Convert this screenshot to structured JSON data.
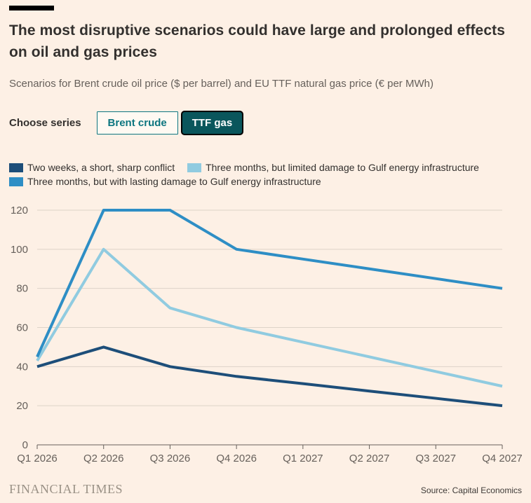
{
  "theme": {
    "background": "#fdf0e5",
    "accent_teal": "#0d7680",
    "selected_button_bg": "#0a565c",
    "title_color": "#33302e",
    "muted_text": "#66605b",
    "grid_color": "#ddd3c8",
    "axis_color": "#66605b"
  },
  "header": {
    "title": "The most disruptive scenarios could have large and prolonged effects on oil and gas prices",
    "subtitle": "Scenarios for Brent crude oil price ($ per barrel) and EU TTF natural gas price (€ per MWh)"
  },
  "controls": {
    "label": "Choose series",
    "buttons": [
      {
        "label": "Brent crude",
        "selected": false
      },
      {
        "label": "TTF gas",
        "selected": true
      }
    ]
  },
  "legend": {
    "items": [
      {
        "label": "Two weeks, a short, sharp conflict",
        "color": "#1d4e79"
      },
      {
        "label": "Three months, but limited damage to Gulf energy infrastructure",
        "color": "#90cbe0"
      },
      {
        "label": "Three months, but with lasting damage to Gulf energy infrastructure",
        "color": "#2e8ec5"
      }
    ]
  },
  "chart_data": {
    "type": "line",
    "x_labels": [
      "Q1 2026",
      "Q2 2026",
      "Q3 2026",
      "Q4 2026",
      "Q1 2027",
      "Q2 2027",
      "Q3 2027",
      "Q4 2027"
    ],
    "ylim": [
      0,
      120
    ],
    "yticks": [
      0,
      20,
      40,
      60,
      80,
      100,
      120
    ],
    "grid": "horizontal",
    "legend_position": "top",
    "series": [
      {
        "name": "Two weeks, a short, sharp conflict",
        "color": "#1d4e79",
        "values": [
          40,
          50,
          40,
          35,
          31.3,
          27.5,
          23.8,
          20
        ]
      },
      {
        "name": "Three months, but limited damage to Gulf energy infrastructure",
        "color": "#90cbe0",
        "values": [
          43,
          100,
          70,
          60,
          52.5,
          45,
          37.5,
          30
        ]
      },
      {
        "name": "Three months, but with lasting damage to Gulf energy infrastructure",
        "color": "#2e8ec5",
        "values": [
          45,
          120,
          120,
          100,
          95,
          90,
          85,
          80
        ]
      }
    ]
  },
  "footer": {
    "brand": "FINANCIAL TIMES",
    "source": "Source: Capital Economics"
  }
}
